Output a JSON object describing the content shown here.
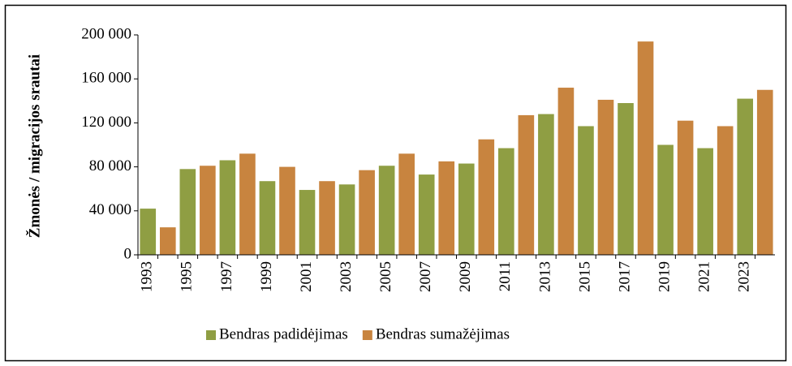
{
  "chart_data": {
    "type": "bar",
    "y_label": "Žmonės / migracijos srautai",
    "categories": [
      "1993",
      null,
      "1995",
      null,
      "1997",
      null,
      "1999",
      null,
      "2001",
      null,
      "2003",
      null,
      "2005",
      null,
      "2007",
      null,
      "2009",
      null,
      "2011",
      null,
      "2013",
      null,
      "2015",
      null,
      "2017",
      null,
      "2019",
      null,
      "2021",
      null,
      "2023",
      null
    ],
    "series": [
      {
        "name": "Bendras padidėjimas",
        "color": "#8f9e43",
        "values": [
          42000,
          null,
          78000,
          null,
          86000,
          null,
          67000,
          null,
          59000,
          null,
          64000,
          null,
          81000,
          null,
          73000,
          null,
          83000,
          null,
          97000,
          null,
          128000,
          null,
          117000,
          null,
          138000,
          null,
          100000,
          null,
          97000,
          null,
          142000,
          null
        ]
      },
      {
        "name": "Bendras sumažėjimas",
        "color": "#c8843f",
        "values": [
          null,
          25000,
          null,
          81000,
          null,
          92000,
          null,
          80000,
          null,
          67000,
          null,
          77000,
          null,
          92000,
          null,
          85000,
          null,
          105000,
          null,
          127000,
          null,
          152000,
          null,
          141000,
          null,
          194000,
          null,
          122000,
          null,
          117000,
          null,
          150000
        ]
      }
    ],
    "ylim": [
      0,
      200000
    ],
    "yticks": [
      0,
      {
        "value": 40000,
        "label": "40 000"
      },
      {
        "value": 80000,
        "label": "80 000"
      },
      {
        "value": 120000,
        "label": "120 000"
      },
      {
        "value": 160000,
        "label": "160 000"
      },
      {
        "value": 200000,
        "label": "200 000"
      }
    ],
    "legend": "bottom"
  }
}
